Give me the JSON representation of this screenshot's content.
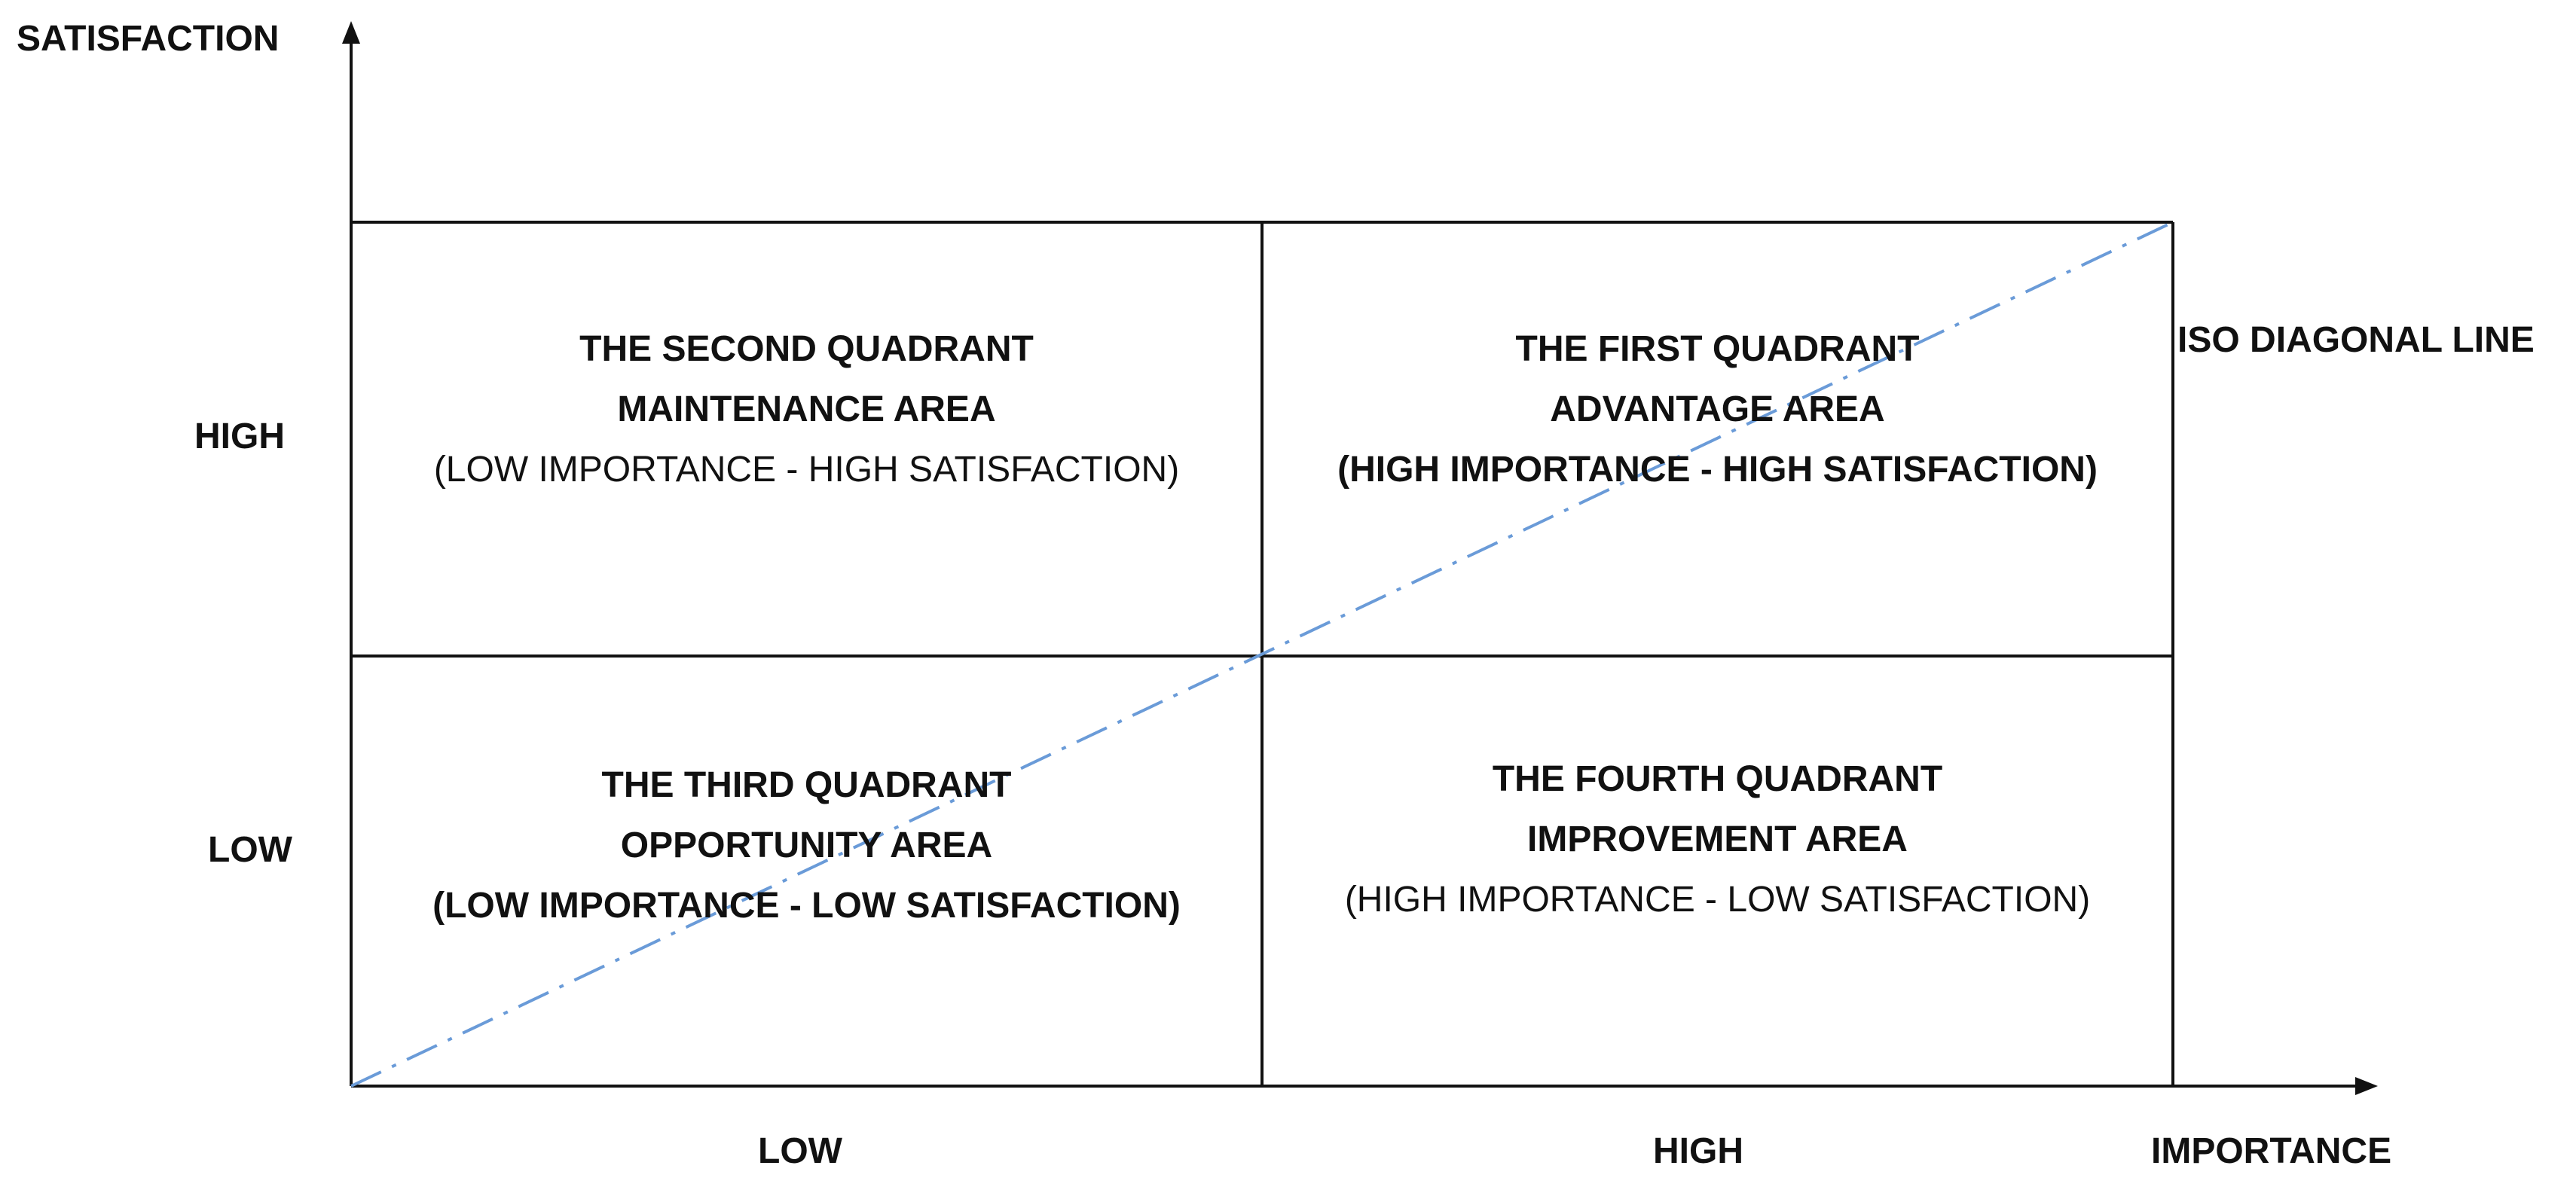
{
  "axes": {
    "y_title": "SATISFACTION",
    "x_title": "IMPORTANCE",
    "y_high": "HIGH",
    "y_low": "LOW",
    "x_low": "LOW",
    "x_high": "HIGH"
  },
  "diagonal": {
    "label": "ISO DIAGONAL LINE",
    "color": "#6a9bd8",
    "style": "dash-dot"
  },
  "quadrants": {
    "second": {
      "title": "THE SECOND QUADRANT",
      "area": "MAINTENANCE AREA",
      "desc": "(LOW IMPORTANCE - HIGH SATISFACTION)"
    },
    "first": {
      "title": "THE FIRST QUADRANT",
      "area": "ADVANTAGE AREA",
      "desc": "(HIGH IMPORTANCE - HIGH SATISFACTION)"
    },
    "third": {
      "title": "THE THIRD QUADRANT",
      "area": "OPPORTUNITY AREA",
      "desc": "(LOW IMPORTANCE - LOW SATISFACTION)"
    },
    "fourth": {
      "title": "THE FOURTH QUADRANT",
      "area": "IMPROVEMENT AREA",
      "desc": "(HIGH IMPORTANCE - LOW SATISFACTION)"
    }
  }
}
